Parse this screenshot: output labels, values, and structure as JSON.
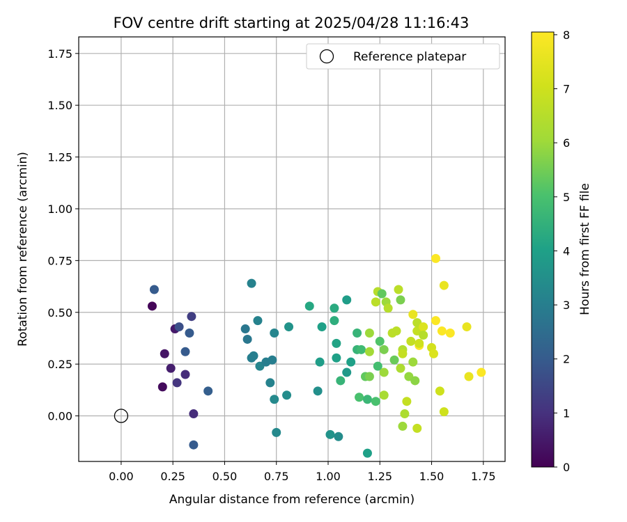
{
  "chart_data": {
    "type": "scatter",
    "title": "FOV centre drift starting at 2025/04/28 11:16:43",
    "xlabel": "Angular distance from reference (arcmin)",
    "ylabel": "Rotation from reference (arcmin)",
    "xlim": [
      -0.205,
      1.855
    ],
    "ylim": [
      -0.22,
      1.83
    ],
    "xticks": [
      "0.00",
      "0.25",
      "0.50",
      "0.75",
      "1.00",
      "1.25",
      "1.50",
      "1.75"
    ],
    "xtick_values": [
      0,
      0.25,
      0.5,
      0.75,
      1.0,
      1.25,
      1.5,
      1.75
    ],
    "yticks": [
      "0.00",
      "0.25",
      "0.50",
      "0.75",
      "1.00",
      "1.25",
      "1.50",
      "1.75"
    ],
    "ytick_values": [
      0,
      0.25,
      0.5,
      0.75,
      1.0,
      1.25,
      1.5,
      1.75
    ],
    "grid": true,
    "legend": {
      "placement": "top-right",
      "entries": [
        "Reference platepar"
      ]
    },
    "reference_point": {
      "name": "Reference platepar",
      "x": 0.0,
      "y": 0.0,
      "marker": "open-circle"
    },
    "colorbar": {
      "label": "Hours from first FF file",
      "min": 0,
      "max": 8.05,
      "ticks": [
        "0",
        "1",
        "2",
        "3",
        "4",
        "5",
        "6",
        "7",
        "8"
      ],
      "tick_values": [
        0,
        1,
        2,
        3,
        4,
        5,
        6,
        7,
        8
      ],
      "colormap": "viridis"
    },
    "points": [
      {
        "x": 0.15,
        "y": 0.53,
        "c": 0.1
      },
      {
        "x": 0.2,
        "y": 0.14,
        "c": 0.2
      },
      {
        "x": 0.21,
        "y": 0.3,
        "c": 0.4
      },
      {
        "x": 0.24,
        "y": 0.23,
        "c": 0.6
      },
      {
        "x": 0.26,
        "y": 0.42,
        "c": 0.5
      },
      {
        "x": 0.27,
        "y": 0.16,
        "c": 1.1
      },
      {
        "x": 0.28,
        "y": 0.43,
        "c": 1.7
      },
      {
        "x": 0.31,
        "y": 0.2,
        "c": 0.9
      },
      {
        "x": 0.31,
        "y": 0.31,
        "c": 2.0
      },
      {
        "x": 0.33,
        "y": 0.4,
        "c": 2.0
      },
      {
        "x": 0.34,
        "y": 0.48,
        "c": 1.3
      },
      {
        "x": 0.35,
        "y": 0.01,
        "c": 0.9
      },
      {
        "x": 0.35,
        "y": -0.14,
        "c": 2.0
      },
      {
        "x": 0.16,
        "y": 0.61,
        "c": 2.0
      },
      {
        "x": 0.42,
        "y": 0.12,
        "c": 2.1
      },
      {
        "x": 0.6,
        "y": 0.42,
        "c": 2.8
      },
      {
        "x": 0.61,
        "y": 0.37,
        "c": 2.8
      },
      {
        "x": 0.63,
        "y": 0.64,
        "c": 3.1
      },
      {
        "x": 0.63,
        "y": 0.28,
        "c": 3.0
      },
      {
        "x": 0.64,
        "y": 0.29,
        "c": 3.0
      },
      {
        "x": 0.66,
        "y": 0.46,
        "c": 3.1
      },
      {
        "x": 0.67,
        "y": 0.24,
        "c": 3.2
      },
      {
        "x": 0.7,
        "y": 0.26,
        "c": 3.0
      },
      {
        "x": 0.72,
        "y": 0.16,
        "c": 3.1
      },
      {
        "x": 0.73,
        "y": 0.27,
        "c": 3.0
      },
      {
        "x": 0.74,
        "y": 0.4,
        "c": 3.2
      },
      {
        "x": 0.74,
        "y": 0.08,
        "c": 3.3
      },
      {
        "x": 0.75,
        "y": -0.08,
        "c": 3.3
      },
      {
        "x": 0.8,
        "y": 0.1,
        "c": 3.4
      },
      {
        "x": 0.81,
        "y": 0.43,
        "c": 3.6
      },
      {
        "x": 0.91,
        "y": 0.53,
        "c": 4.2
      },
      {
        "x": 0.95,
        "y": 0.12,
        "c": 3.5
      },
      {
        "x": 0.96,
        "y": 0.26,
        "c": 3.9
      },
      {
        "x": 0.97,
        "y": 0.43,
        "c": 4.0
      },
      {
        "x": 1.01,
        "y": -0.09,
        "c": 3.6
      },
      {
        "x": 1.03,
        "y": 0.52,
        "c": 4.3
      },
      {
        "x": 1.03,
        "y": 0.46,
        "c": 4.4
      },
      {
        "x": 1.04,
        "y": 0.28,
        "c": 4.0
      },
      {
        "x": 1.04,
        "y": 0.35,
        "c": 4.1
      },
      {
        "x": 1.05,
        "y": -0.1,
        "c": 3.4
      },
      {
        "x": 1.06,
        "y": 0.17,
        "c": 4.6
      },
      {
        "x": 1.09,
        "y": 0.21,
        "c": 3.8
      },
      {
        "x": 1.09,
        "y": 0.56,
        "c": 3.9
      },
      {
        "x": 1.11,
        "y": 0.26,
        "c": 4.0
      },
      {
        "x": 1.14,
        "y": 0.32,
        "c": 4.6
      },
      {
        "x": 1.14,
        "y": 0.4,
        "c": 4.6
      },
      {
        "x": 1.15,
        "y": 0.09,
        "c": 5.0
      },
      {
        "x": 1.16,
        "y": 0.32,
        "c": 4.8
      },
      {
        "x": 1.18,
        "y": 0.19,
        "c": 5.3
      },
      {
        "x": 1.19,
        "y": -0.18,
        "c": 4.0
      },
      {
        "x": 1.19,
        "y": 0.08,
        "c": 4.7
      },
      {
        "x": 1.2,
        "y": 0.19,
        "c": 5.6
      },
      {
        "x": 1.2,
        "y": 0.31,
        "c": 6.1
      },
      {
        "x": 1.2,
        "y": 0.4,
        "c": 6.0
      },
      {
        "x": 1.23,
        "y": 0.07,
        "c": 5.0
      },
      {
        "x": 1.23,
        "y": 0.55,
        "c": 6.6
      },
      {
        "x": 1.24,
        "y": 0.6,
        "c": 6.5
      },
      {
        "x": 1.24,
        "y": 0.24,
        "c": 4.9
      },
      {
        "x": 1.25,
        "y": 0.36,
        "c": 5.1
      },
      {
        "x": 1.26,
        "y": 0.59,
        "c": 5.3
      },
      {
        "x": 1.27,
        "y": 0.21,
        "c": 6.0
      },
      {
        "x": 1.27,
        "y": 0.1,
        "c": 6.2
      },
      {
        "x": 1.27,
        "y": 0.32,
        "c": 5.6
      },
      {
        "x": 1.28,
        "y": 0.55,
        "c": 6.0
      },
      {
        "x": 1.29,
        "y": 0.52,
        "c": 6.5
      },
      {
        "x": 1.31,
        "y": 0.4,
        "c": 6.6
      },
      {
        "x": 1.32,
        "y": 0.27,
        "c": 5.4
      },
      {
        "x": 1.33,
        "y": 0.41,
        "c": 6.6
      },
      {
        "x": 1.34,
        "y": 0.61,
        "c": 6.6
      },
      {
        "x": 1.35,
        "y": 0.56,
        "c": 5.6
      },
      {
        "x": 1.35,
        "y": 0.23,
        "c": 6.3
      },
      {
        "x": 1.36,
        "y": 0.32,
        "c": 6.4
      },
      {
        "x": 1.36,
        "y": 0.3,
        "c": 6.8
      },
      {
        "x": 1.36,
        "y": -0.05,
        "c": 6.0
      },
      {
        "x": 1.37,
        "y": 0.01,
        "c": 6.3
      },
      {
        "x": 1.38,
        "y": 0.07,
        "c": 6.8
      },
      {
        "x": 1.39,
        "y": 0.19,
        "c": 5.9
      },
      {
        "x": 1.4,
        "y": 0.36,
        "c": 6.8
      },
      {
        "x": 1.41,
        "y": 0.49,
        "c": 7.6
      },
      {
        "x": 1.41,
        "y": 0.26,
        "c": 6.0
      },
      {
        "x": 1.42,
        "y": 0.17,
        "c": 5.8
      },
      {
        "x": 1.43,
        "y": 0.41,
        "c": 6.8
      },
      {
        "x": 1.43,
        "y": 0.45,
        "c": 6.6
      },
      {
        "x": 1.43,
        "y": -0.06,
        "c": 6.8
      },
      {
        "x": 1.44,
        "y": 0.34,
        "c": 8.0
      },
      {
        "x": 1.44,
        "y": 0.35,
        "c": 7.0
      },
      {
        "x": 1.46,
        "y": 0.43,
        "c": 7.3
      },
      {
        "x": 1.46,
        "y": 0.39,
        "c": 6.5
      },
      {
        "x": 1.5,
        "y": 0.33,
        "c": 7.1
      },
      {
        "x": 1.51,
        "y": 0.3,
        "c": 7.3
      },
      {
        "x": 1.52,
        "y": 0.46,
        "c": 8.0
      },
      {
        "x": 1.52,
        "y": 0.76,
        "c": 8.0
      },
      {
        "x": 1.54,
        "y": 0.12,
        "c": 7.0
      },
      {
        "x": 1.55,
        "y": 0.41,
        "c": 8.0
      },
      {
        "x": 1.56,
        "y": 0.63,
        "c": 7.6
      },
      {
        "x": 1.56,
        "y": 0.02,
        "c": 7.0
      },
      {
        "x": 1.59,
        "y": 0.4,
        "c": 8.0
      },
      {
        "x": 1.67,
        "y": 0.43,
        "c": 7.6
      },
      {
        "x": 1.68,
        "y": 0.19,
        "c": 7.6
      },
      {
        "x": 1.74,
        "y": 0.21,
        "c": 8.0
      }
    ]
  }
}
